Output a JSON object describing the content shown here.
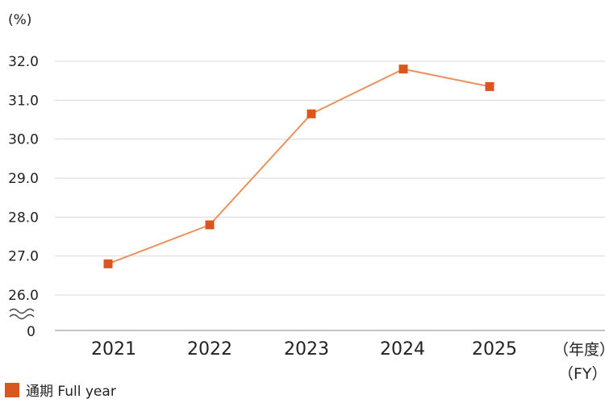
{
  "chart_data": {
    "type": "line",
    "y_unit": "(%)",
    "x_unit_line1": "（年度）",
    "x_unit_line2": "（FY）",
    "categories": [
      "2021",
      "2022",
      "2023",
      "2024",
      "2025"
    ],
    "series": [
      {
        "name": "通期   Full year",
        "values": [
          26.8,
          27.8,
          30.65,
          31.8,
          31.35
        ]
      }
    ],
    "y_ticks": [
      "32.0",
      "31.0",
      "30.0",
      "29.0",
      "28.0",
      "27.0",
      "26.0"
    ],
    "y_tick_values": [
      32,
      31,
      30,
      29,
      28,
      27,
      26
    ],
    "y_axis_break_label": "0",
    "ylim": [
      25.2,
      32
    ],
    "grid": true,
    "legend_position": "bottom-left",
    "colors": {
      "series": "#d9571f",
      "line": "#e8935f",
      "grid": "#d8d8d8",
      "axis": "#888888"
    }
  }
}
